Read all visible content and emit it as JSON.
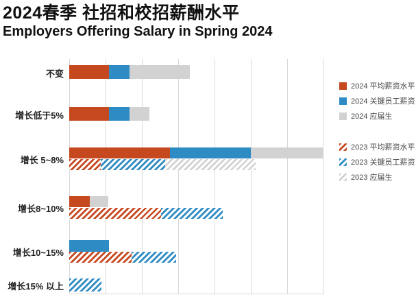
{
  "header": {
    "title": "2024春季 社招和校招薪酬水平",
    "subtitle": "Employers Offering Salary in Spring 2024"
  },
  "colors": {
    "avg_salary_red": "#c6481f",
    "key_staff_blue": "#2e8bc3",
    "graduate_gray": "#d2d2d2",
    "gridline": "#d9d9d9",
    "text": "#222222",
    "legend_text": "#444444"
  },
  "chart_data": {
    "type": "bar",
    "orientation": "horizontal",
    "stacked": true,
    "title": "2024春季 社招和校招薪酬水平",
    "subtitle": "Employers Offering Salary in Spring 2024",
    "categories": [
      "不变",
      "增长低于5%",
      "增长 5~8%",
      "增长8~10%",
      "增长10~15%",
      "增长15% 以上"
    ],
    "xlim": [
      0,
      35
    ],
    "grid_interval": 5,
    "x_tick_labels_shown": false,
    "grid": true,
    "legend_position": "right",
    "series": [
      {
        "name": "2024 平均薪资水平",
        "year": "2024",
        "pattern": "solid",
        "color_key": "avg_salary_red",
        "values": [
          5.5,
          5.5,
          13.9,
          2.8,
          0,
          0
        ]
      },
      {
        "name": "2024 关键员工薪资",
        "year": "2024",
        "pattern": "solid",
        "color_key": "key_staff_blue",
        "values": [
          2.8,
          2.8,
          11.1,
          0,
          5.5,
          0
        ]
      },
      {
        "name": "2024 应届生",
        "year": "2024",
        "pattern": "solid",
        "color_key": "graduate_gray",
        "values": [
          8.3,
          2.7,
          10.0,
          2.6,
          0,
          0
        ]
      },
      {
        "name": "2023 平均薪资水平",
        "year": "2023",
        "pattern": "hatch",
        "color_key": "avg_salary_red",
        "values": [
          0,
          0,
          4.3,
          12.6,
          8.6,
          0
        ]
      },
      {
        "name": "2023 关键员工薪资",
        "year": "2023",
        "pattern": "hatch",
        "color_key": "key_staff_blue",
        "values": [
          0,
          0,
          8.9,
          8.5,
          6.1,
          4.4
        ]
      },
      {
        "name": "2023 应届生",
        "year": "2023",
        "pattern": "hatch",
        "color_key": "graduate_gray",
        "values": [
          0,
          0,
          12.5,
          0,
          0,
          0
        ]
      }
    ]
  }
}
